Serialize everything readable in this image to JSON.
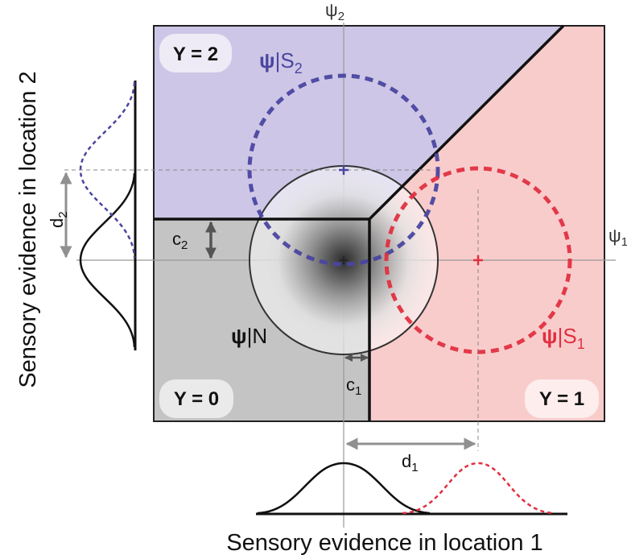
{
  "axes": {
    "x_axis_label": "Sensory evidence in location 1",
    "y_axis_label": "Sensory evidence in location 2",
    "psi1_symbol": "ψ",
    "psi1_subscript": "1",
    "psi2_symbol": "ψ",
    "psi2_subscript": "2"
  },
  "regions": {
    "y2_label": "Y = 2",
    "y1_label": "Y = 1",
    "y0_label": "Y = 0"
  },
  "distributions": {
    "noise_symbol": "ψ",
    "noise_cond": "|N",
    "s1_symbol": "ψ",
    "s1_cond": "|S",
    "s1_sub": "1",
    "s2_symbol": "ψ",
    "s2_cond": "|S",
    "s2_sub": "2"
  },
  "parameters": {
    "c1_letter": "c",
    "c1_sub": "1",
    "c2_letter": "c",
    "c2_sub": "2",
    "d1_letter": "d",
    "d1_sub": "1",
    "d2_letter": "d",
    "d2_sub": "2"
  },
  "colors": {
    "y2_region": "#cdc6e6",
    "y1_region": "#f9cccc",
    "y0_region": "#c4c4c4",
    "signal1": "#e03040",
    "signal2": "#4a46a0",
    "noise": "#222222"
  }
}
